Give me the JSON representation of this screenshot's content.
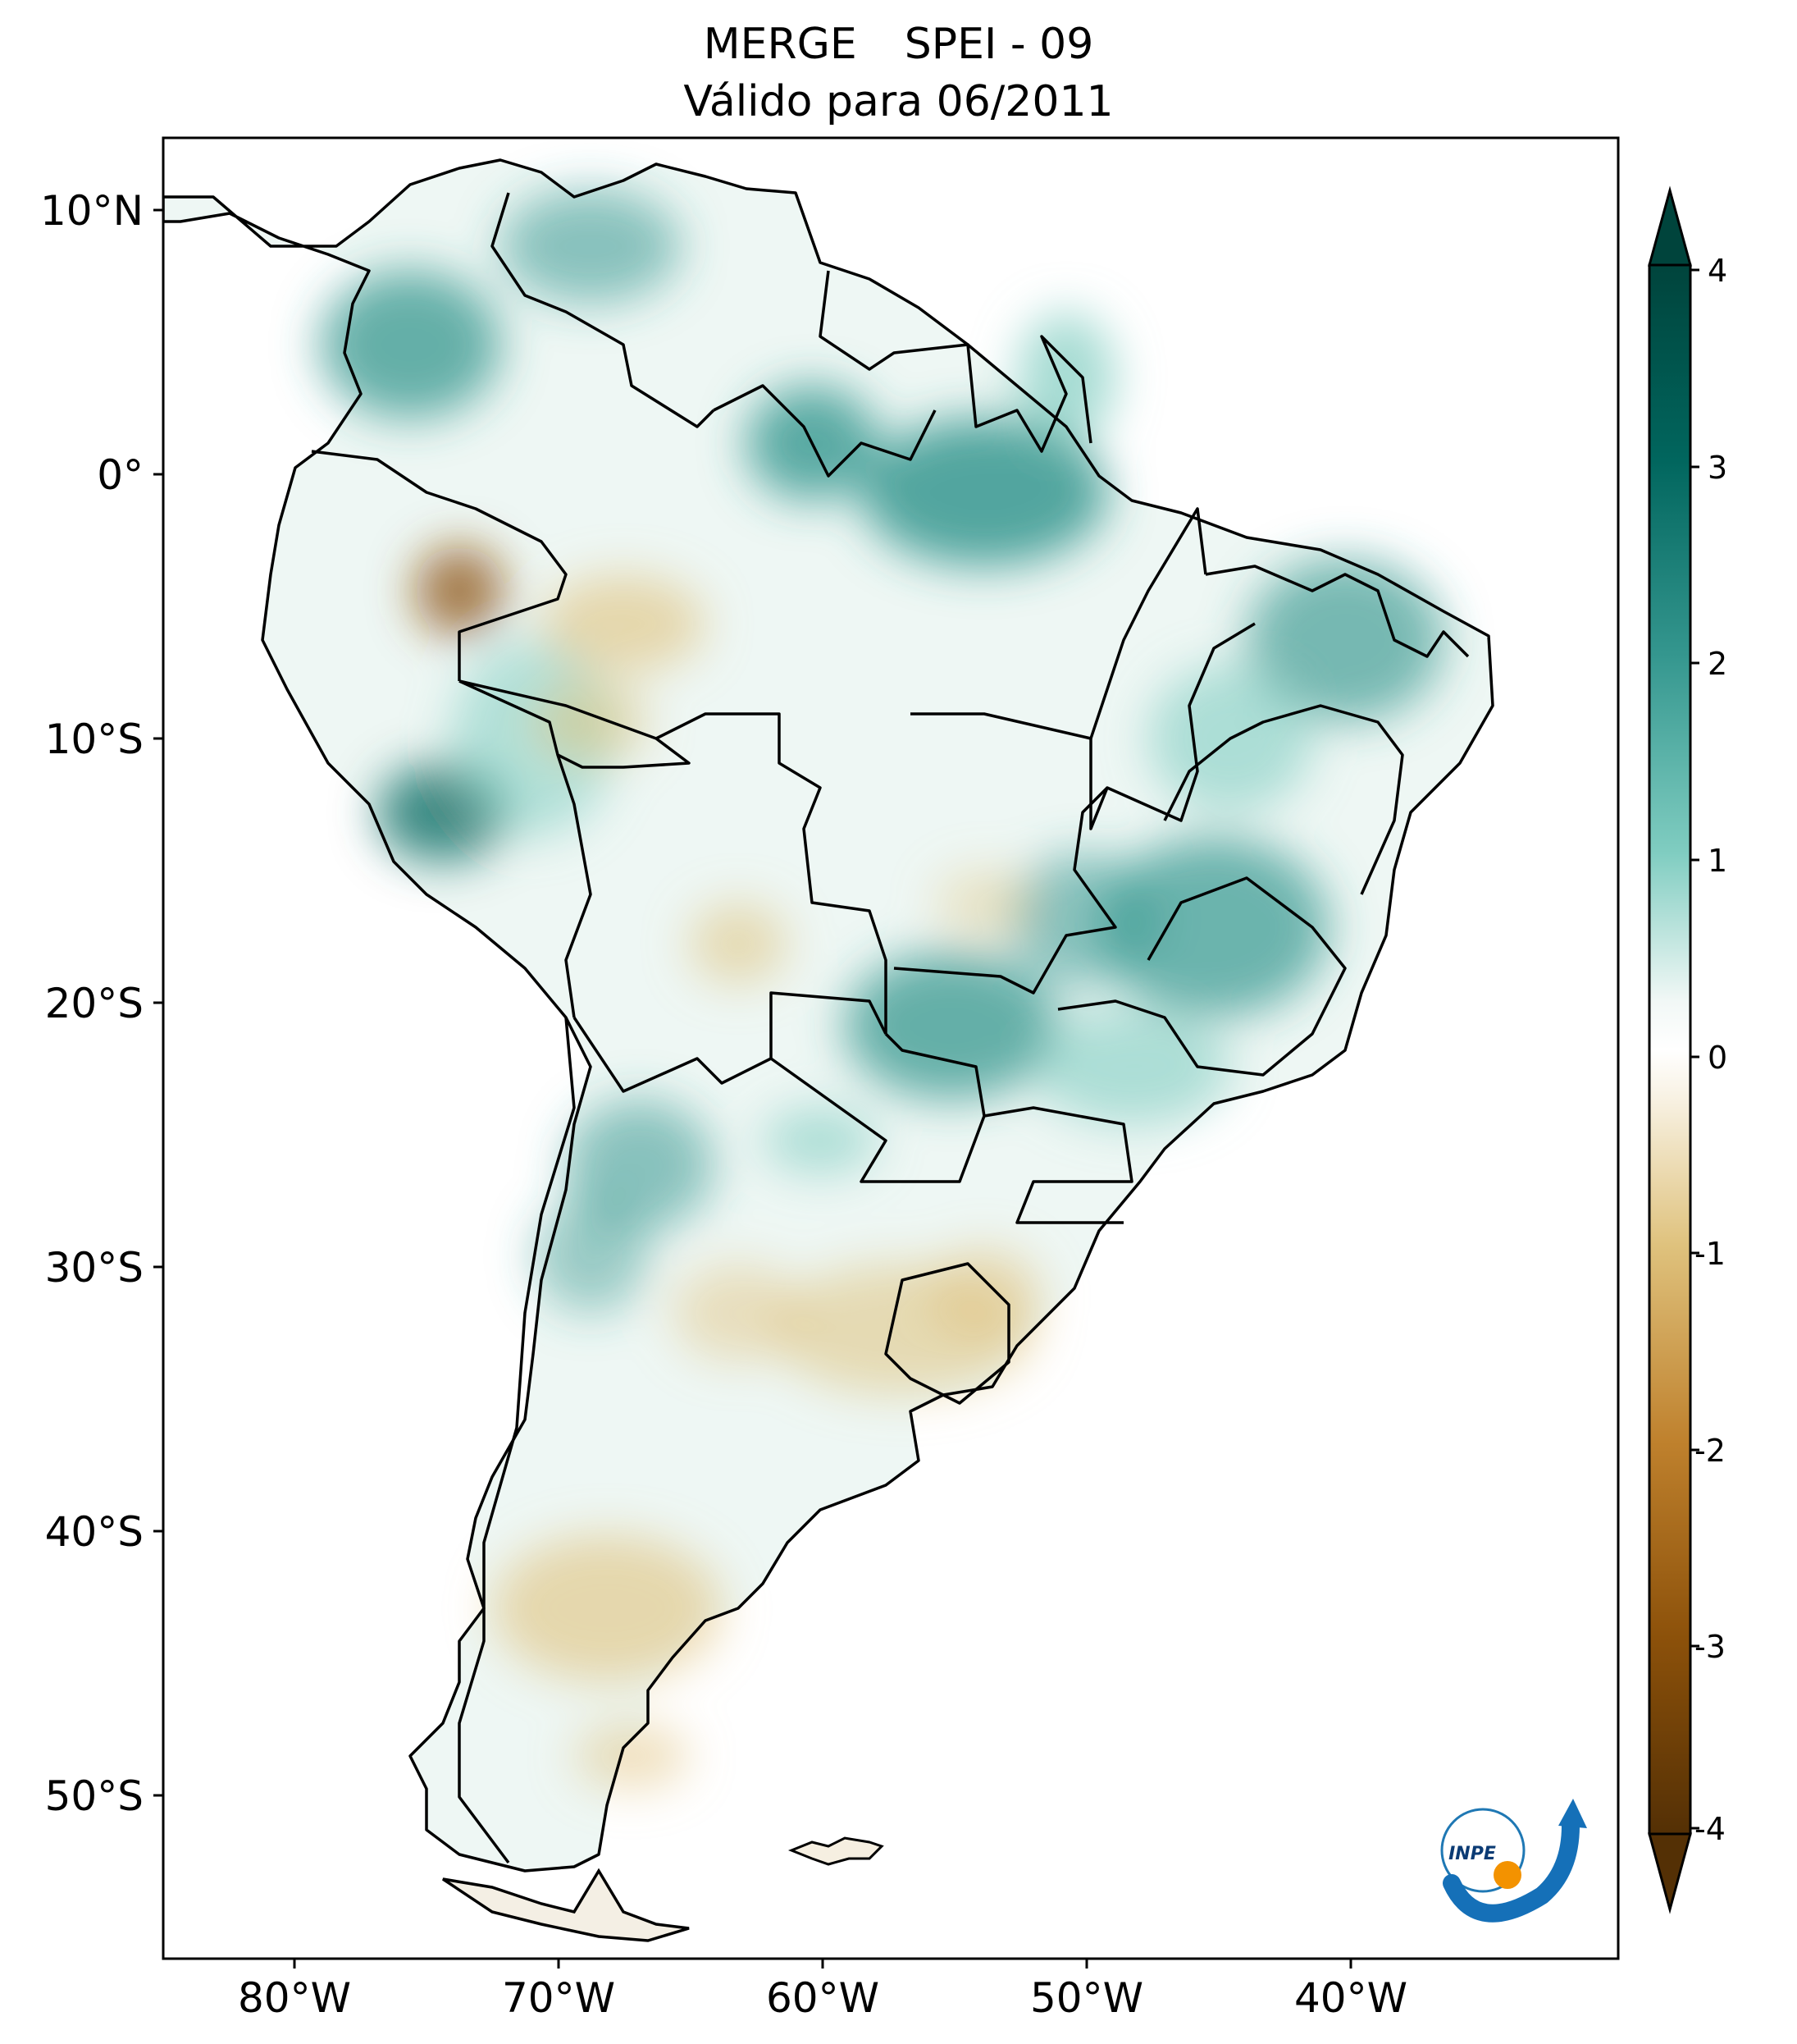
{
  "title": {
    "dataset": "MERGE",
    "index": "SPEI - 09",
    "subtitle": "Válido para 06/2011"
  },
  "axes": {
    "lat_ticks": [
      "10°N",
      "0°",
      "10°S",
      "20°S",
      "30°S",
      "40°S",
      "50°S"
    ],
    "lon_ticks": [
      "80°W",
      "70°W",
      "60°W",
      "50°W",
      "40°W"
    ]
  },
  "colorbar": {
    "ticks": [
      "4",
      "3",
      "2",
      "1",
      "0",
      "-1",
      "-2",
      "-3",
      "-4"
    ],
    "colors": {
      "wet_max": "#00443c",
      "wet": "#35978f",
      "wet_light": "#80cdc1",
      "neutral": "#ffffff",
      "dry_light": "#dfc27d",
      "dry": "#bf812d",
      "dry_max": "#543005"
    }
  },
  "logo": {
    "text": "INPE"
  }
}
